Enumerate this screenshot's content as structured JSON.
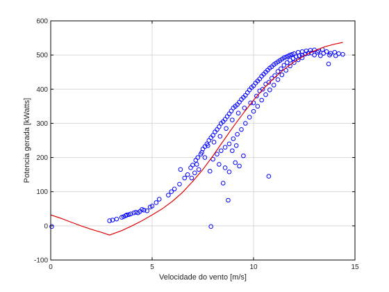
{
  "chart_data": {
    "type": "scatter",
    "title": "",
    "xlabel": "Velocidade do vento [m/s]",
    "ylabel": "Potencia gerada [kWatts]",
    "xlim": [
      0,
      15
    ],
    "ylim": [
      -100,
      600
    ],
    "xticks": [
      0,
      5,
      10,
      15
    ],
    "yticks": [
      -100,
      0,
      100,
      200,
      300,
      400,
      500,
      600
    ],
    "grid": true,
    "series": [
      {
        "kind": "scatter",
        "marker": "circle-open",
        "color": "#0000ff",
        "points": [
          [
            0.05,
            -2
          ],
          [
            2.9,
            15
          ],
          [
            3.05,
            17
          ],
          [
            3.25,
            20
          ],
          [
            3.5,
            25
          ],
          [
            3.6,
            27
          ],
          [
            3.7,
            30
          ],
          [
            3.75,
            32
          ],
          [
            3.85,
            33
          ],
          [
            3.95,
            35
          ],
          [
            4.1,
            38
          ],
          [
            4.2,
            40
          ],
          [
            4.3,
            38
          ],
          [
            4.4,
            42
          ],
          [
            4.5,
            48
          ],
          [
            4.6,
            46
          ],
          [
            4.75,
            44
          ],
          [
            4.9,
            55
          ],
          [
            5.0,
            58
          ],
          [
            5.2,
            68
          ],
          [
            5.35,
            78
          ],
          [
            5.8,
            90
          ],
          [
            5.95,
            100
          ],
          [
            6.1,
            108
          ],
          [
            6.35,
            122
          ],
          [
            6.4,
            165
          ],
          [
            6.6,
            140
          ],
          [
            6.75,
            150
          ],
          [
            6.9,
            170
          ],
          [
            7.0,
            178
          ],
          [
            7.15,
            192
          ],
          [
            7.25,
            200
          ],
          [
            7.4,
            210
          ],
          [
            7.5,
            225
          ],
          [
            7.6,
            232
          ],
          [
            7.7,
            240
          ],
          [
            7.8,
            250
          ],
          [
            7.9,
            258
          ],
          [
            8.0,
            265
          ],
          [
            8.1,
            275
          ],
          [
            8.2,
            282
          ],
          [
            8.3,
            290
          ],
          [
            8.4,
            300
          ],
          [
            8.5,
            305
          ],
          [
            8.6,
            312
          ],
          [
            8.7,
            320
          ],
          [
            8.8,
            328
          ],
          [
            8.9,
            336
          ],
          [
            9.0,
            345
          ],
          [
            9.1,
            350
          ],
          [
            9.2,
            355
          ],
          [
            9.3,
            362
          ],
          [
            9.4,
            370
          ],
          [
            9.5,
            376
          ],
          [
            9.6,
            382
          ],
          [
            9.7,
            390
          ],
          [
            9.8,
            398
          ],
          [
            9.9,
            405
          ],
          [
            10.0,
            410
          ],
          [
            10.1,
            418
          ],
          [
            10.2,
            424
          ],
          [
            10.3,
            430
          ],
          [
            10.4,
            438
          ],
          [
            10.5,
            444
          ],
          [
            10.6,
            450
          ],
          [
            10.7,
            456
          ],
          [
            10.8,
            462
          ],
          [
            10.9,
            466
          ],
          [
            11.0,
            472
          ],
          [
            11.1,
            476
          ],
          [
            11.2,
            480
          ],
          [
            11.3,
            484
          ],
          [
            11.4,
            488
          ],
          [
            11.5,
            492
          ],
          [
            11.6,
            494
          ],
          [
            11.7,
            497
          ],
          [
            11.8,
            500
          ],
          [
            11.9,
            502
          ],
          [
            12.0,
            504
          ],
          [
            12.2,
            508
          ],
          [
            12.4,
            510
          ],
          [
            12.6,
            512
          ],
          [
            12.8,
            514
          ],
          [
            13.0,
            515
          ],
          [
            13.2,
            512
          ],
          [
            13.4,
            516
          ],
          [
            13.6,
            510
          ],
          [
            13.8,
            505
          ],
          [
            14.0,
            508
          ],
          [
            14.2,
            504
          ],
          [
            14.4,
            502
          ],
          [
            13.7,
            474
          ],
          [
            8.0,
            195
          ],
          [
            8.2,
            210
          ],
          [
            8.4,
            220
          ],
          [
            8.6,
            230
          ],
          [
            8.8,
            240
          ],
          [
            9.0,
            255
          ],
          [
            9.2,
            268
          ],
          [
            9.4,
            282
          ],
          [
            9.6,
            300
          ],
          [
            9.8,
            318
          ],
          [
            10.0,
            335
          ],
          [
            10.2,
            350
          ],
          [
            10.4,
            368
          ],
          [
            10.6,
            384
          ],
          [
            10.8,
            398
          ],
          [
            11.0,
            412
          ],
          [
            11.2,
            428
          ],
          [
            11.4,
            442
          ],
          [
            11.6,
            455
          ],
          [
            11.8,
            468
          ],
          [
            12.0,
            478
          ],
          [
            12.2,
            486
          ],
          [
            12.4,
            492
          ],
          [
            8.3,
            180
          ],
          [
            8.6,
            170
          ],
          [
            8.8,
            158
          ],
          [
            8.5,
            125
          ],
          [
            9.1,
            185
          ],
          [
            9.3,
            175
          ],
          [
            9.5,
            205
          ],
          [
            8.95,
            220
          ],
          [
            9.15,
            235
          ],
          [
            7.85,
            160
          ],
          [
            8.75,
            75
          ],
          [
            7.9,
            -2
          ],
          [
            10.75,
            145
          ],
          [
            7.2,
            180
          ],
          [
            7.6,
            200
          ],
          [
            7.3,
            165
          ],
          [
            7.1,
            155
          ],
          [
            6.95,
            140
          ],
          [
            7.45,
            215
          ],
          [
            7.75,
            235
          ],
          [
            8.05,
            245
          ],
          [
            8.35,
            262
          ],
          [
            8.65,
            285
          ],
          [
            8.95,
            310
          ],
          [
            9.25,
            330
          ],
          [
            9.55,
            345
          ],
          [
            9.85,
            360
          ],
          [
            10.15,
            380
          ],
          [
            10.45,
            400
          ],
          [
            10.75,
            420
          ],
          [
            11.05,
            440
          ],
          [
            11.35,
            460
          ],
          [
            11.65,
            478
          ],
          [
            11.95,
            490
          ],
          [
            12.25,
            498
          ],
          [
            12.55,
            503
          ],
          [
            12.85,
            506
          ],
          [
            13.15,
            508
          ],
          [
            13.45,
            505
          ],
          [
            13.75,
            500
          ],
          [
            14.05,
            498
          ],
          [
            10.0,
            360
          ],
          [
            10.3,
            395
          ],
          [
            10.6,
            415
          ],
          [
            10.9,
            432
          ],
          [
            11.2,
            452
          ],
          [
            11.5,
            470
          ],
          [
            11.8,
            485
          ],
          [
            12.1,
            495
          ],
          [
            12.4,
            500
          ],
          [
            12.7,
            505
          ],
          [
            13.0,
            500
          ],
          [
            13.3,
            498
          ]
        ]
      },
      {
        "kind": "line",
        "color": "#dd0000",
        "points": [
          [
            0,
            32
          ],
          [
            0.5,
            22
          ],
          [
            1.0,
            11
          ],
          [
            1.5,
            0
          ],
          [
            2.0,
            -10
          ],
          [
            2.5,
            -19
          ],
          [
            2.9,
            -27
          ],
          [
            3.5,
            -14
          ],
          [
            4.0,
            0
          ],
          [
            4.5,
            15
          ],
          [
            5.0,
            32
          ],
          [
            5.5,
            50
          ],
          [
            6.0,
            72
          ],
          [
            6.5,
            98
          ],
          [
            7.0,
            130
          ],
          [
            7.5,
            165
          ],
          [
            8.0,
            205
          ],
          [
            8.5,
            248
          ],
          [
            9.0,
            290
          ],
          [
            9.5,
            330
          ],
          [
            10.0,
            368
          ],
          [
            10.5,
            402
          ],
          [
            11.0,
            432
          ],
          [
            11.5,
            458
          ],
          [
            12.0,
            480
          ],
          [
            12.5,
            498
          ],
          [
            13.0,
            512
          ],
          [
            13.5,
            524
          ],
          [
            14.0,
            532
          ],
          [
            14.4,
            537
          ]
        ]
      }
    ]
  }
}
